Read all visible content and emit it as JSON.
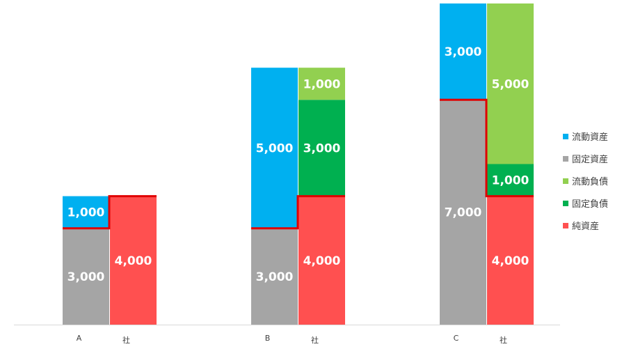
{
  "chart_data": {
    "type": "bar",
    "stacked": true,
    "ylim": [
      0,
      10000
    ],
    "grid": false,
    "legend_position": "right",
    "companies": [
      {
        "label": "A",
        "suffix": "社",
        "assets": [
          {
            "series": "固定資産",
            "value": 3000
          },
          {
            "series": "流動資産",
            "value": 1000
          }
        ],
        "liabilities": [
          {
            "series": "純資産",
            "value": 4000
          }
        ]
      },
      {
        "label": "B",
        "suffix": "社",
        "assets": [
          {
            "series": "固定資産",
            "value": 3000
          },
          {
            "series": "流動資産",
            "value": 5000
          }
        ],
        "liabilities": [
          {
            "series": "純資産",
            "value": 4000
          },
          {
            "series": "固定負債",
            "value": 3000
          },
          {
            "series": "流動負債",
            "value": 1000
          }
        ]
      },
      {
        "label": "C",
        "suffix": "社",
        "assets": [
          {
            "series": "固定資産",
            "value": 7000
          },
          {
            "series": "流動資産",
            "value": 3000
          }
        ],
        "liabilities": [
          {
            "series": "純資産",
            "value": 4000
          },
          {
            "series": "固定負債",
            "value": 1000
          },
          {
            "series": "流動負債",
            "value": 5000
          }
        ]
      }
    ],
    "series": [
      {
        "name": "流動資産",
        "color": "#00b0f0"
      },
      {
        "name": "固定資産",
        "color": "#a5a5a5"
      },
      {
        "name": "流動負債",
        "color": "#92d050"
      },
      {
        "name": "固定負債",
        "color": "#00b050"
      },
      {
        "name": "純資産",
        "color": "#ff5050"
      }
    ],
    "boundary_line_color": "#e00000"
  }
}
